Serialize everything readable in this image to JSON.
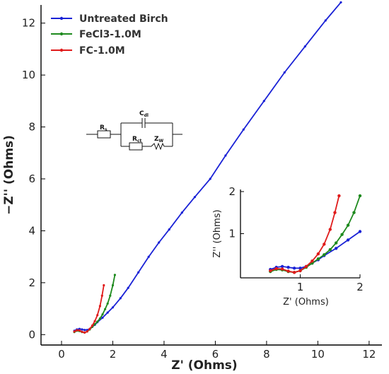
{
  "chart_data": {
    "type": "line",
    "xlabel": "Z' (Ohms)",
    "ylabel": "−Z'' (Ohms)",
    "xlim": [
      -0.8,
      12.5
    ],
    "ylim": [
      -0.4,
      12.7
    ],
    "xticks": [
      "0",
      "2",
      "4",
      "6",
      "8",
      "10",
      "12"
    ],
    "yticks": [
      "0",
      "2",
      "4",
      "6",
      "8",
      "10",
      "12"
    ],
    "legend_position": "top-left",
    "series": [
      {
        "name": "Untreated Birch",
        "color": "#1a22d6",
        "points": [
          [
            0.5,
            0.15
          ],
          [
            0.6,
            0.2
          ],
          [
            0.7,
            0.22
          ],
          [
            0.8,
            0.2
          ],
          [
            0.9,
            0.18
          ],
          [
            1.0,
            0.18
          ],
          [
            1.1,
            0.22
          ],
          [
            1.2,
            0.3
          ],
          [
            1.3,
            0.38
          ],
          [
            1.4,
            0.48
          ],
          [
            1.6,
            0.65
          ],
          [
            1.8,
            0.85
          ],
          [
            2.0,
            1.05
          ],
          [
            2.3,
            1.4
          ],
          [
            2.6,
            1.8
          ],
          [
            3.0,
            2.4
          ],
          [
            3.4,
            3.0
          ],
          [
            3.8,
            3.55
          ],
          [
            4.2,
            4.05
          ],
          [
            4.7,
            4.7
          ],
          [
            5.2,
            5.3
          ],
          [
            5.8,
            6.0
          ],
          [
            6.4,
            6.9
          ],
          [
            7.1,
            7.9
          ],
          [
            7.9,
            9.0
          ],
          [
            8.7,
            10.1
          ],
          [
            9.5,
            11.1
          ],
          [
            10.3,
            12.1
          ],
          [
            10.9,
            12.8
          ]
        ]
      },
      {
        "name": "FeCl3-1.0M",
        "color": "#1e8a1e",
        "points": [
          [
            0.5,
            0.1
          ],
          [
            0.6,
            0.15
          ],
          [
            0.7,
            0.14
          ],
          [
            0.8,
            0.1
          ],
          [
            0.9,
            0.08
          ],
          [
            1.0,
            0.12
          ],
          [
            1.1,
            0.2
          ],
          [
            1.2,
            0.3
          ],
          [
            1.3,
            0.4
          ],
          [
            1.4,
            0.5
          ],
          [
            1.5,
            0.62
          ],
          [
            1.6,
            0.78
          ],
          [
            1.7,
            0.98
          ],
          [
            1.8,
            1.2
          ],
          [
            1.9,
            1.5
          ],
          [
            2.0,
            1.9
          ],
          [
            2.08,
            2.3
          ]
        ]
      },
      {
        "name": "FC-1.0M",
        "color": "#e01b1b",
        "points": [
          [
            0.5,
            0.12
          ],
          [
            0.6,
            0.17
          ],
          [
            0.7,
            0.16
          ],
          [
            0.8,
            0.11
          ],
          [
            0.9,
            0.08
          ],
          [
            1.0,
            0.12
          ],
          [
            1.1,
            0.22
          ],
          [
            1.2,
            0.35
          ],
          [
            1.3,
            0.52
          ],
          [
            1.4,
            0.75
          ],
          [
            1.5,
            1.1
          ],
          [
            1.58,
            1.5
          ],
          [
            1.65,
            1.9
          ]
        ]
      }
    ],
    "inset": {
      "xlabel": "Z' (Ohms)",
      "ylabel": "Z'' (Ohms)",
      "xlim": [
        0.0,
        2.0
      ],
      "ylim": [
        -0.05,
        2.05
      ],
      "xticks": [
        "1",
        "2"
      ],
      "yticks": [
        "1",
        "2"
      ]
    },
    "circuit": {
      "rs": "R",
      "rs_sub": "s",
      "cdl": "C",
      "cdl_sub": "dl",
      "rct": "R",
      "rct_sub": "ct",
      "zw": "Z",
      "zw_sub": "W"
    }
  }
}
